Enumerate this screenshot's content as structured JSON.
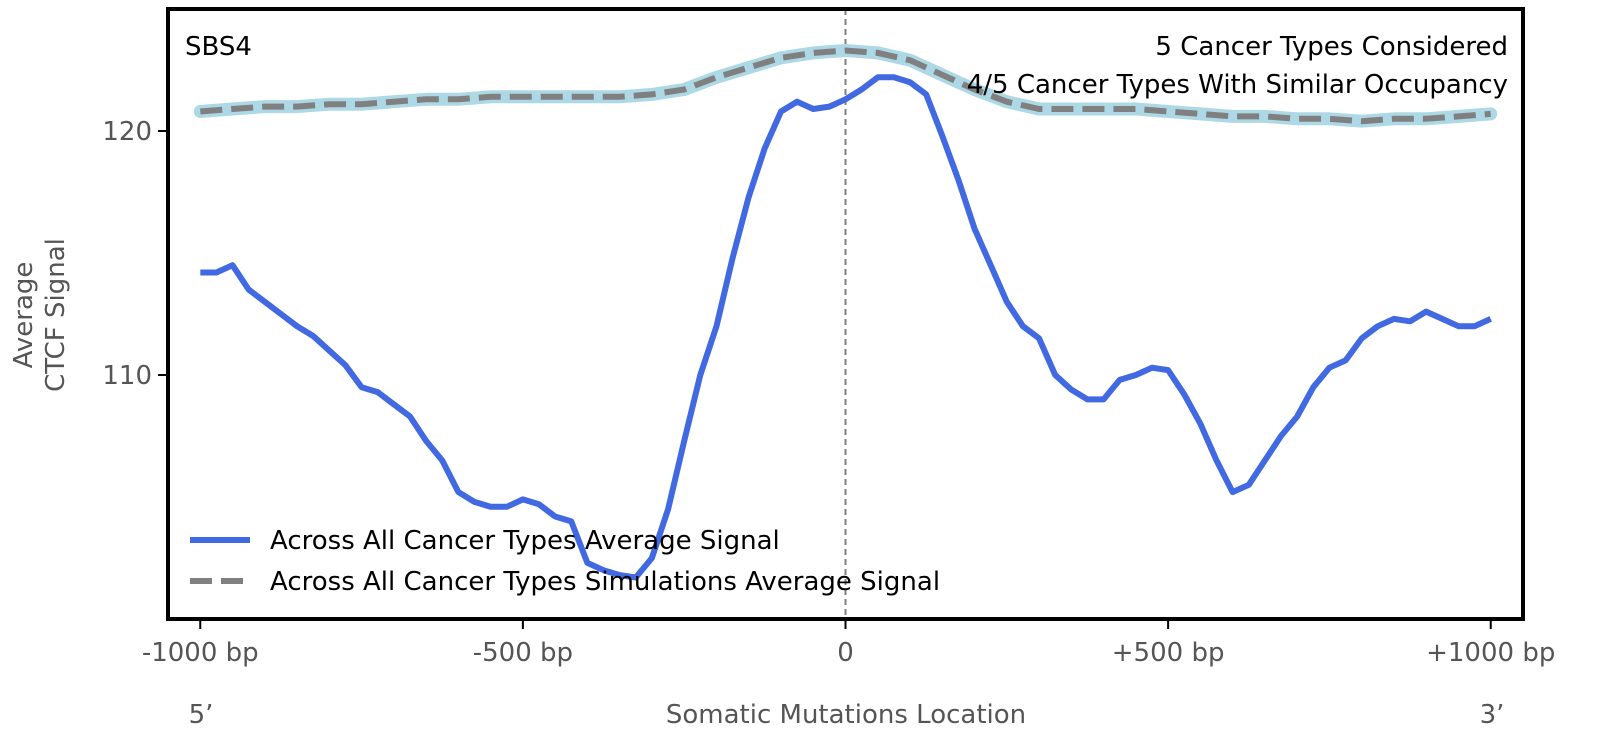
{
  "chart_data": {
    "type": "line",
    "signature_label": "SBS4",
    "annotation_line1": "5 Cancer Types Considered",
    "annotation_line2": "4/5 Cancer Types With Similar Occupancy",
    "xlabel": "Somatic Mutations Location",
    "ylabel_line1": "Average",
    "ylabel_line2": "CTCF Signal",
    "end_label_left": "5’",
    "end_label_right": "3’",
    "xlim": [
      -1050,
      1050
    ],
    "ylim": [
      100,
      125
    ],
    "x_ticks": [
      {
        "value": -1000,
        "label": "-1000 bp"
      },
      {
        "value": -500,
        "label": "-500 bp"
      },
      {
        "value": 0,
        "label": "0"
      },
      {
        "value": 500,
        "label": "+500 bp"
      },
      {
        "value": 1000,
        "label": "+1000 bp"
      }
    ],
    "y_ticks": [
      {
        "value": 110,
        "label": "110"
      },
      {
        "value": 120,
        "label": "120"
      }
    ],
    "center_line_x": 0,
    "series": [
      {
        "name": "Across All Cancer Types Average Signal",
        "color": "#4169e1",
        "style": "solid",
        "x": [
          -1000,
          -975,
          -950,
          -925,
          -900,
          -875,
          -850,
          -825,
          -800,
          -775,
          -750,
          -725,
          -700,
          -675,
          -650,
          -625,
          -600,
          -575,
          -550,
          -525,
          -500,
          -475,
          -450,
          -425,
          -400,
          -375,
          -350,
          -325,
          -300,
          -275,
          -250,
          -225,
          -200,
          -175,
          -150,
          -125,
          -100,
          -75,
          -50,
          -25,
          0,
          25,
          50,
          75,
          100,
          125,
          150,
          175,
          200,
          225,
          250,
          275,
          300,
          325,
          350,
          375,
          400,
          425,
          450,
          475,
          500,
          525,
          550,
          575,
          600,
          625,
          650,
          675,
          700,
          725,
          750,
          775,
          800,
          825,
          850,
          875,
          900,
          925,
          950,
          975,
          1000
        ],
        "values": [
          114.2,
          114.2,
          114.5,
          113.5,
          113.0,
          112.5,
          112.0,
          111.6,
          111.0,
          110.4,
          109.5,
          109.3,
          108.8,
          108.3,
          107.3,
          106.5,
          105.2,
          104.8,
          104.6,
          104.6,
          104.9,
          104.7,
          104.2,
          104.0,
          102.3,
          102.0,
          101.8,
          101.7,
          102.5,
          104.5,
          107.3,
          110.0,
          112.0,
          114.8,
          117.3,
          119.3,
          120.8,
          121.2,
          120.9,
          121.0,
          121.3,
          121.7,
          122.2,
          122.2,
          122.0,
          121.5,
          119.8,
          118.0,
          116.0,
          114.5,
          113.0,
          112.0,
          111.5,
          110.0,
          109.4,
          109.0,
          109.0,
          109.8,
          110.0,
          110.3,
          110.2,
          109.2,
          108.0,
          106.5,
          105.2,
          105.5,
          106.5,
          107.5,
          108.3,
          109.5,
          110.3,
          110.6,
          111.5,
          112.0,
          112.3,
          112.2,
          112.6,
          112.3,
          112.0,
          112.0,
          112.3
        ]
      },
      {
        "name": "Across All Cancer Types Simulations Average Signal",
        "color": "#808080",
        "band_color": "#add8e6",
        "style": "dashed",
        "x": [
          -1000,
          -950,
          -900,
          -850,
          -800,
          -750,
          -700,
          -650,
          -600,
          -550,
          -500,
          -450,
          -400,
          -350,
          -300,
          -250,
          -200,
          -150,
          -100,
          -50,
          0,
          50,
          100,
          150,
          200,
          250,
          300,
          350,
          400,
          450,
          500,
          550,
          600,
          650,
          700,
          750,
          800,
          850,
          900,
          950,
          1000
        ],
        "values": [
          120.8,
          120.9,
          121.0,
          121.0,
          121.1,
          121.1,
          121.2,
          121.3,
          121.3,
          121.4,
          121.4,
          121.4,
          121.4,
          121.4,
          121.5,
          121.7,
          122.2,
          122.6,
          123.0,
          123.2,
          123.3,
          123.2,
          122.9,
          122.3,
          121.7,
          121.2,
          120.9,
          120.9,
          120.9,
          120.9,
          120.8,
          120.7,
          120.6,
          120.6,
          120.5,
          120.5,
          120.4,
          120.5,
          120.5,
          120.6,
          120.7
        ]
      }
    ]
  }
}
